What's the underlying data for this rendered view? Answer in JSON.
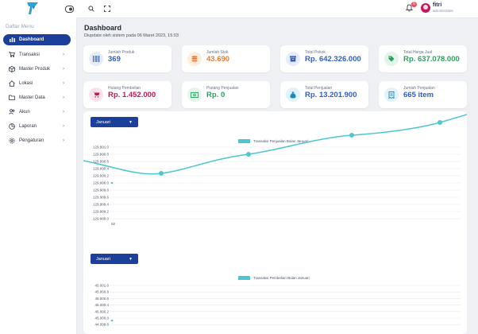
{
  "topbar": {
    "notification_count": "0",
    "user_name": "fitri",
    "user_role": "administrator"
  },
  "sidebar": {
    "menu_title": "Daftar Menu",
    "items": [
      {
        "label": "Dashboard",
        "icon": "dashboard-icon",
        "active": true,
        "chevron": false
      },
      {
        "label": "Transaksi",
        "icon": "cart-icon",
        "chevron": true
      },
      {
        "label": "Master Produk",
        "icon": "box-icon",
        "chevron": true
      },
      {
        "label": "Lokasi",
        "icon": "home-icon",
        "chevron": true
      },
      {
        "label": "Master Data",
        "icon": "folder-icon",
        "chevron": true
      },
      {
        "label": "Akun",
        "icon": "users-icon",
        "chevron": true
      },
      {
        "label": "Laporan",
        "icon": "chart-icon",
        "chevron": true
      },
      {
        "label": "Pengaturan",
        "icon": "gear-icon",
        "chevron": true
      }
    ]
  },
  "main": {
    "title": "Dashboard",
    "subtitle": "Diupdate oleh sistem pada 06 Maret 2023, 15:03",
    "cards": [
      {
        "label": "Jumlah Produk",
        "value": "369",
        "color": "#2f5fc4",
        "icon_bg": "#e6ecfb",
        "icon": "barcode-icon"
      },
      {
        "label": "Jumlah Stok",
        "value": "43.690",
        "color": "#f07a2b",
        "icon_bg": "#fdeede",
        "icon": "stack-icon"
      },
      {
        "label": "Total Pokok",
        "value": "Rp. 642.326.000",
        "color": "#2f5fc4",
        "icon_bg": "#e6ecfb",
        "icon": "archive-icon"
      },
      {
        "label": "Total Harga Jual",
        "value": "Rp. 637.078.000",
        "color": "#23a55a",
        "icon_bg": "#e3f5ea",
        "icon": "tag-icon"
      },
      {
        "label": "Hutang Pembelian",
        "value": "Rp. 1.452.000",
        "color": "#c2185b",
        "icon_bg": "#fbe3ec",
        "icon": "cart-icon"
      },
      {
        "label": "Piutang Penjualan",
        "value": "Rp. 0",
        "color": "#23a55a",
        "icon_bg": "#e3f5ea",
        "icon": "money-icon"
      },
      {
        "label": "Total Penjualan",
        "value": "Rp. 13.201.900",
        "color": "#2f5fc4",
        "icon_bg": "#e0f3fb",
        "icon": "moneybag-icon"
      },
      {
        "label": "Jumlah Penjualan",
        "value": "665 item",
        "color": "#2f5fc4",
        "icon_bg": "#e0f3fb",
        "icon": "receipt-icon"
      }
    ]
  },
  "charts": {
    "sales": {
      "month": "Januari",
      "legend": "Transaksi Penjualan Bulan Januari"
    },
    "purchase": {
      "month": "Januari",
      "legend": "Transaksi Pembelian Bulan Januari"
    }
  },
  "chart_data": [
    {
      "type": "line",
      "title": "",
      "series": [
        {
          "name": "Transaksi Penjualan Bulan Januari",
          "values": [
            129990.0
          ]
        }
      ],
      "x": [
        "02"
      ],
      "yticks": [
        "129.991.0",
        "129.990.8",
        "129.990.6",
        "129.990.4",
        "129.990.2",
        "129.990.0",
        "129.989.8",
        "129.989.6",
        "129.989.4",
        "129.989.2",
        "129.989.0"
      ],
      "ylim": [
        129989.0,
        129991.0
      ],
      "grid": true,
      "legend_position": "top"
    },
    {
      "type": "line",
      "title": "",
      "series": [
        {
          "name": "Transaksi Pembelian Bulan Januari",
          "values": [
            45000.0
          ]
        }
      ],
      "yticks": [
        "45.001.0",
        "45.000.8",
        "45.000.6",
        "45.000.4",
        "45.000.2",
        "45.000.0",
        "44.999.8"
      ],
      "ylim": [
        44999.0,
        45001.0
      ],
      "grid": true,
      "legend_position": "top"
    }
  ]
}
